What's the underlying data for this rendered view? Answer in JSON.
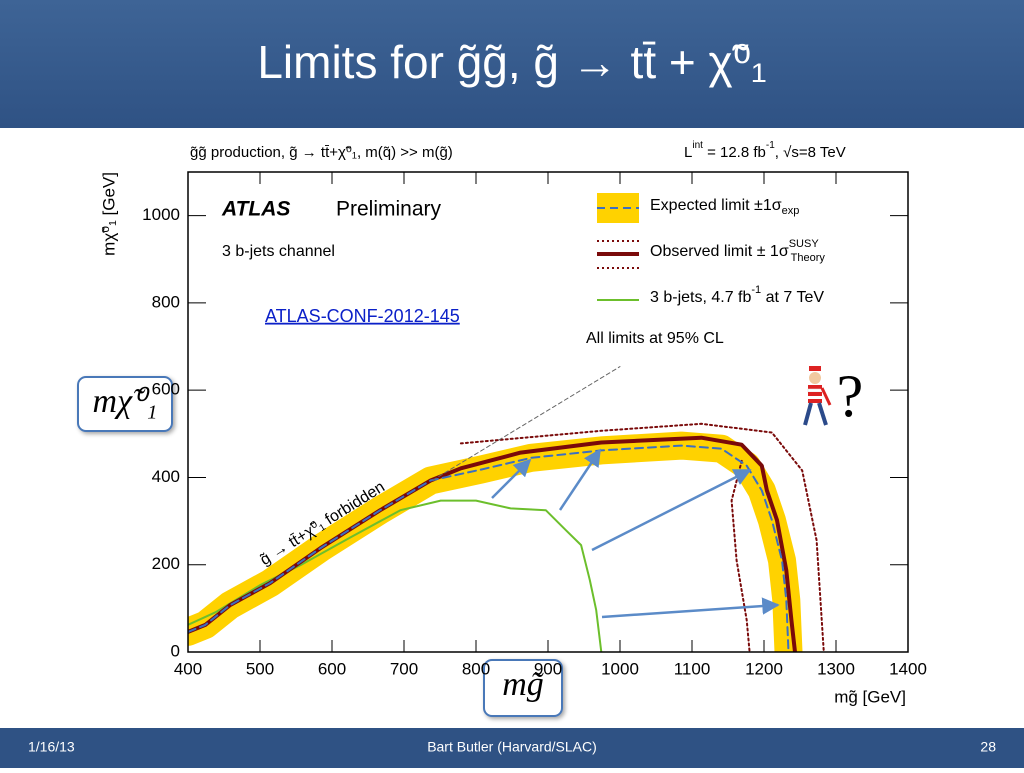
{
  "slide": {
    "title": "Limits for g̃g̃, g̃ → tt̄ + χ̃⁰₁",
    "date": "1/16/13",
    "author": "Bart Butler (Harvard/SLAC)",
    "page": "28"
  },
  "chart_data": {
    "type": "line",
    "header_left": "g̃g̃  production, g̃ → tt̄+χ̃⁰₁, m(q̃) >> m(g̃)",
    "lumi": {
      "text": "L",
      "sup": "int",
      "rest": " = 12.8 fb",
      "sup2": "-1",
      "tail": ", √s=8 TeV"
    },
    "xlabel": "mg̃ [GeV]",
    "ylabel": "mχ̃⁰₁ [GeV]",
    "xlim": [
      400,
      1400
    ],
    "ylim": [
      0,
      1100
    ],
    "xticks": [
      400,
      500,
      600,
      700,
      800,
      900,
      1000,
      1100,
      1200,
      1300,
      1400
    ],
    "yticks": [
      0,
      200,
      400,
      600,
      800,
      1000
    ],
    "annotations": {
      "atlas": "ATLAS",
      "preliminary": "Preliminary",
      "channel": "3 b-jets channel",
      "conf": "ATLAS-CONF-2012-145",
      "cl": "All limits at 95% CL",
      "forbidden": "g̃ → tt̄+χ̃⁰₁ forbidden"
    },
    "callouts": {
      "y": "mχ̃⁰₁",
      "x": "mg̃",
      "question": "?"
    },
    "series": [
      {
        "name": "Expected limit ±1σ",
        "name_sub": "exp",
        "color": "#3b6fc2",
        "band_color": "#ffd200",
        "x": [
          400,
          424,
          458,
          514,
          584,
          667,
          737,
          807,
          877,
          974,
          1085,
          1141,
          1176,
          1197,
          1211,
          1225,
          1231,
          1234
        ],
        "values": [
          46,
          62,
          107,
          158,
          238,
          325,
          393,
          418,
          445,
          462,
          473,
          466,
          427,
          370,
          302,
          210,
          119,
          0
        ]
      },
      {
        "name": "Observed limit ± 1σ",
        "name_sup": "SUSY",
        "name_sub": "Theory",
        "color": "#7a0a0a",
        "x": [
          400,
          424,
          458,
          514,
          584,
          667,
          737,
          779,
          862,
          974,
          1113,
          1169,
          1197,
          1204,
          1218,
          1231,
          1238,
          1243
        ],
        "values": [
          46,
          62,
          107,
          158,
          238,
          325,
          393,
          421,
          457,
          480,
          491,
          475,
          427,
          370,
          302,
          187,
          73,
          0
        ],
        "theory_up": {
          "x": [
            779,
            974,
            1113,
            1211,
            1253,
            1273,
            1283
          ],
          "values": [
            478,
            507,
            523,
            503,
            416,
            256,
            0
          ]
        },
        "theory_down": {
          "x": [
            1169,
            1155,
            1162,
            1176,
            1180
          ],
          "values": [
            438,
            347,
            210,
            73,
            0
          ]
        }
      },
      {
        "name": "3 b-jets, 4.7 fb",
        "name_sup": "-1",
        "name_tail": " at 7 TeV",
        "color": "#6cbf2c",
        "x": [
          400,
          438,
          500,
          556,
          626,
          695,
          751,
          800,
          848,
          897,
          925,
          946,
          958,
          967,
          974
        ],
        "values": [
          62,
          91,
          153,
          199,
          263,
          325,
          347,
          347,
          329,
          325,
          279,
          245,
          165,
          96,
          0
        ]
      }
    ],
    "kinematic_limit": {
      "x": [
        740,
        1000
      ],
      "values": [
        394,
        654
      ]
    }
  }
}
